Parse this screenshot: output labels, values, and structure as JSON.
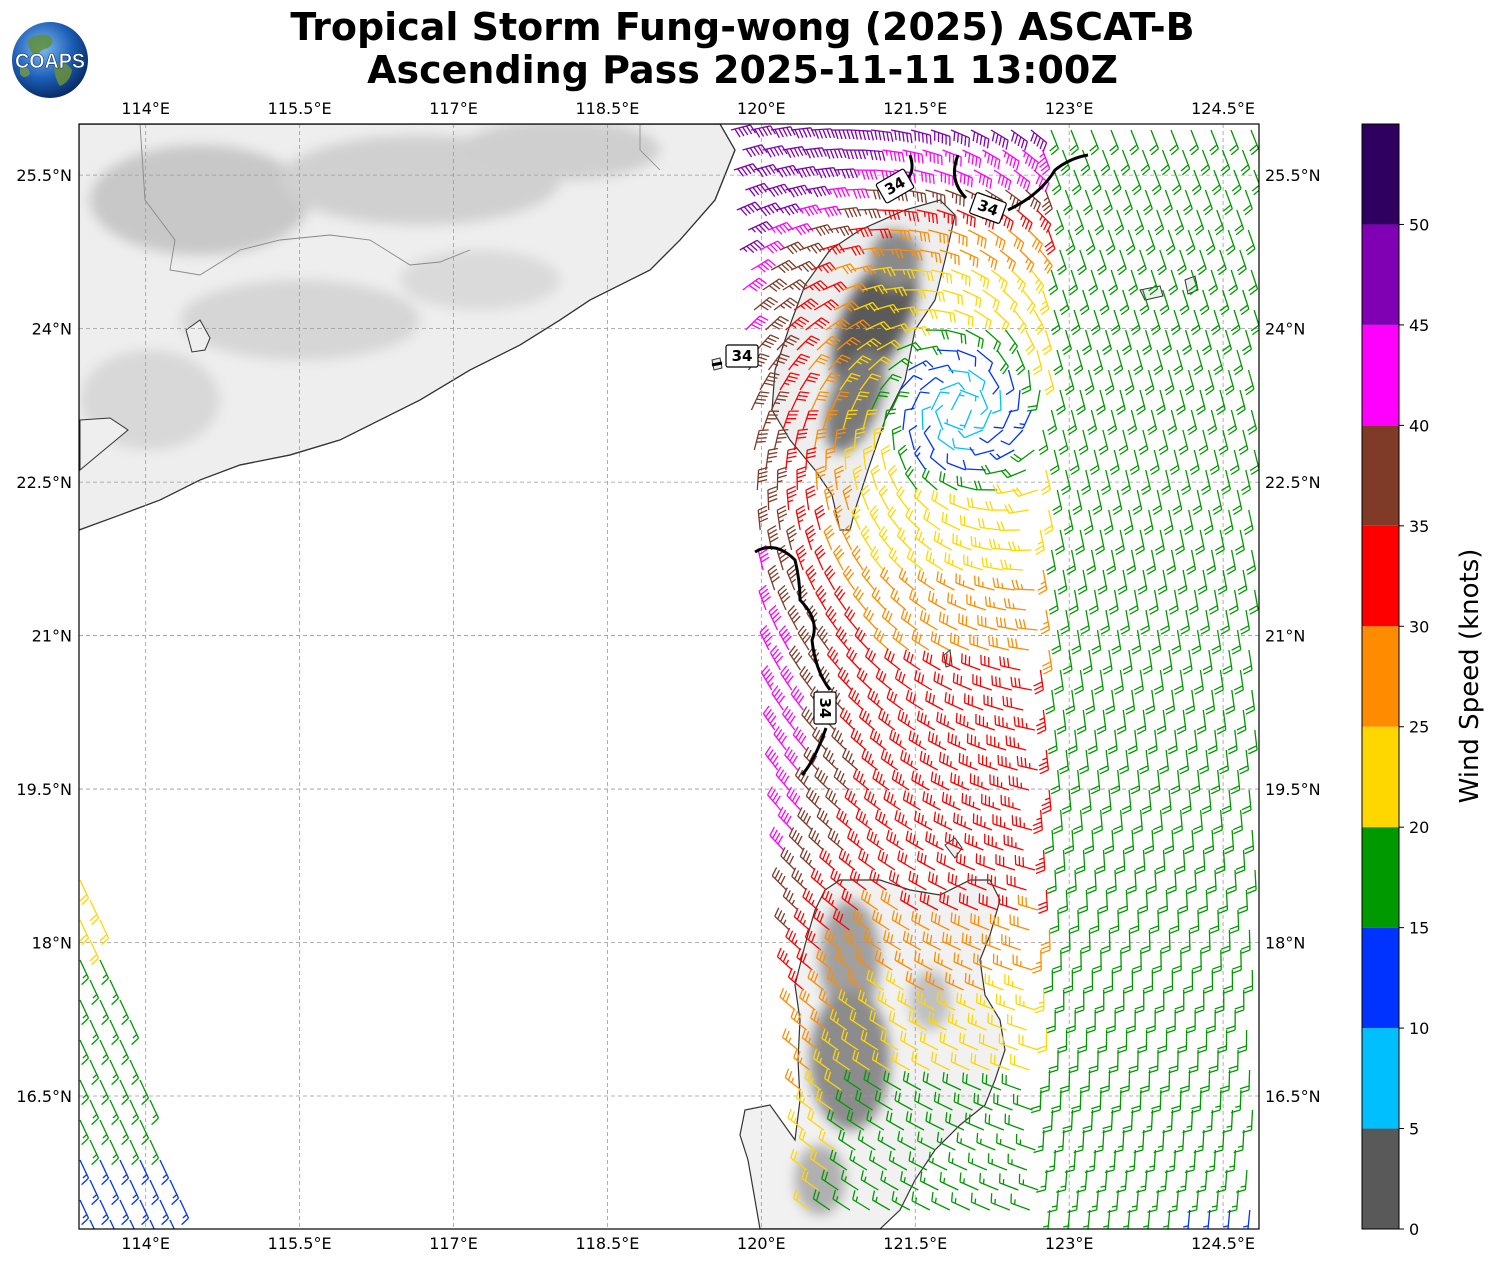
{
  "title": {
    "line1": "Tropical Storm Fung-wong (2025) ASCAT-B",
    "line2": "Ascending Pass 2025-11-11 13:00Z"
  },
  "logo": {
    "text": "COAPS",
    "icon": "globe-icon"
  },
  "map": {
    "lon_range": [
      113.35,
      124.85
    ],
    "lat_range": [
      15.2,
      26.0
    ],
    "lon_ticks": [
      "114°E",
      "115.5°E",
      "117°E",
      "118.5°E",
      "120°E",
      "121.5°E",
      "123°E",
      "124.5°E"
    ],
    "lat_ticks": [
      "25.5°N",
      "24°N",
      "22.5°N",
      "21°N",
      "19.5°N",
      "18°N",
      "16.5°N"
    ],
    "gridlines": true,
    "contour_value": "34",
    "contour_labels": [
      "34",
      "34",
      "34",
      "34"
    ]
  },
  "colorbar": {
    "title": "Wind Speed (knots)",
    "tick_labels": [
      "0",
      "5",
      "10",
      "15",
      "20",
      "25",
      "30",
      "35",
      "40",
      "45",
      "50"
    ],
    "bins": [
      {
        "min": 0,
        "max": 5,
        "color": "#595959"
      },
      {
        "min": 5,
        "max": 10,
        "color": "#00bfff"
      },
      {
        "min": 10,
        "max": 15,
        "color": "#0033ff"
      },
      {
        "min": 15,
        "max": 20,
        "color": "#009900"
      },
      {
        "min": 20,
        "max": 25,
        "color": "#ffd700"
      },
      {
        "min": 25,
        "max": 30,
        "color": "#ff8c00"
      },
      {
        "min": 30,
        "max": 35,
        "color": "#ff0000"
      },
      {
        "min": 35,
        "max": 40,
        "color": "#7f3a28"
      },
      {
        "min": 40,
        "max": 45,
        "color": "#ff00ff"
      },
      {
        "min": 45,
        "max": 50,
        "color": "#8000b3"
      },
      {
        "min": 50,
        "max": 55,
        "color": "#300060"
      }
    ]
  },
  "wind_field": {
    "storm_center": [
      121.95,
      23.2
    ],
    "swath_east": {
      "west_edge_at_26N": 119.7,
      "west_edge_at_15N": 120.5,
      "east_edge": 124.85
    },
    "swath_west": {
      "east_edge_at_19N": 113.35,
      "east_edge_at_15N": 114.5
    }
  }
}
